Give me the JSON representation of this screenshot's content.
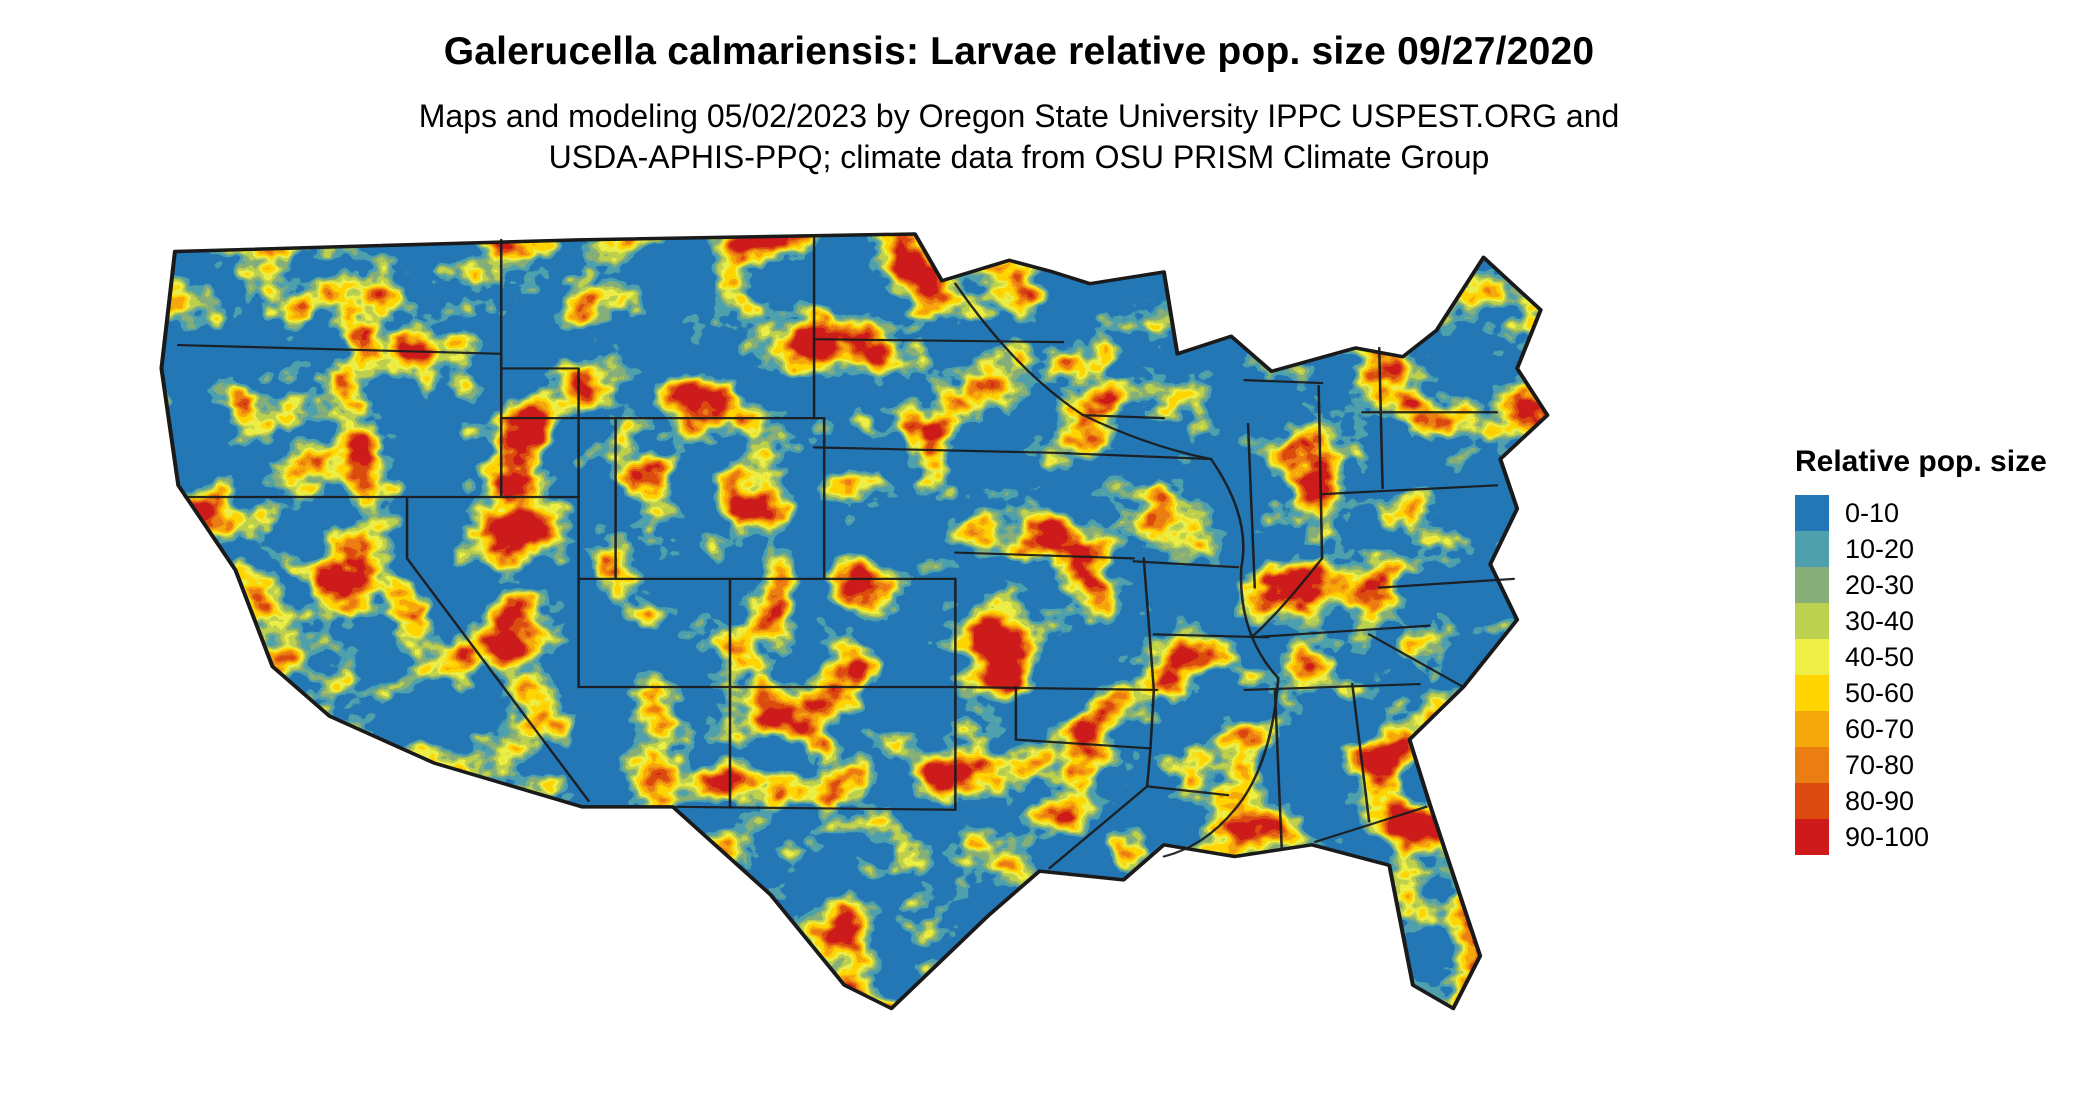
{
  "header": {
    "title": "Galerucella calmariensis: Larvae relative pop. size 09/27/2020",
    "subtitle_line1": "Maps and modeling 05/02/2023 by Oregon State University IPPC USPEST.ORG and",
    "subtitle_line2": "USDA-APHIS-PPQ; climate data from OSU PRISM Climate Group"
  },
  "map": {
    "region": "Continental United States",
    "base_color": "#2377B6",
    "border_color": "#1a1a1a"
  },
  "legend": {
    "title": "Relative pop. size",
    "items": [
      {
        "label": "0-10",
        "color": "#2377B6"
      },
      {
        "label": "10-20",
        "color": "#4FA0AD"
      },
      {
        "label": "20-30",
        "color": "#87AE79"
      },
      {
        "label": "30-40",
        "color": "#BCD14E"
      },
      {
        "label": "40-50",
        "color": "#EDEE46"
      },
      {
        "label": "50-60",
        "color": "#FFD400"
      },
      {
        "label": "60-70",
        "color": "#F5A80C"
      },
      {
        "label": "70-80",
        "color": "#EB7E12"
      },
      {
        "label": "80-90",
        "color": "#DC4A10"
      },
      {
        "label": "90-100",
        "color": "#CE1A1B"
      }
    ]
  }
}
